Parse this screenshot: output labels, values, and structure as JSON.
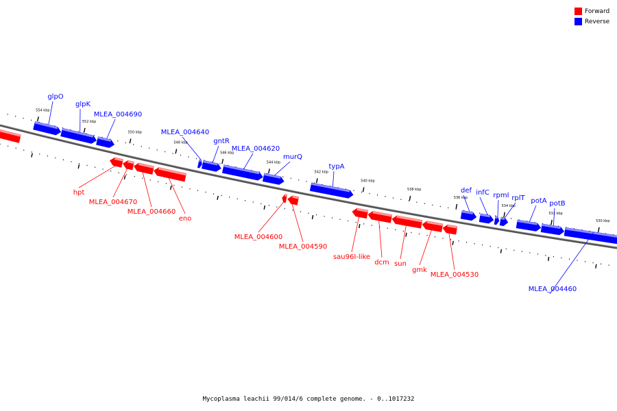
{
  "colors": {
    "forward": "#ff0000",
    "reverse": "#0000ff",
    "backbone": "#555555"
  },
  "legend": [
    {
      "label": "Forward",
      "color": "#ff0000"
    },
    {
      "label": "Reverse",
      "color": "#0000ff"
    }
  ],
  "caption": "Mycoplasma leachii 99/014/6 complete genome. - 0..1017232",
  "scale_labels": [
    "554 kbp",
    "552 kbp",
    "550 kbp",
    "548 kbp",
    "546 kbp",
    "544 kbp",
    "542 kbp",
    "540 kbp",
    "538 kbp",
    "536 kbp",
    "534 kbp",
    "532 kbp",
    "530 kbp"
  ],
  "genes": [
    {
      "name": "",
      "strand": "forward"
    },
    {
      "name": "glpO",
      "strand": "reverse"
    },
    {
      "name": "glpK",
      "strand": "reverse"
    },
    {
      "name": "MLEA_004690",
      "strand": "reverse"
    },
    {
      "name": "MLEA_004640",
      "strand": "reverse"
    },
    {
      "name": "gntR",
      "strand": "reverse"
    },
    {
      "name": "MLEA_004620",
      "strand": "reverse"
    },
    {
      "name": "murQ",
      "strand": "reverse"
    },
    {
      "name": "typA",
      "strand": "reverse"
    },
    {
      "name": "def",
      "strand": "reverse"
    },
    {
      "name": "infC",
      "strand": "reverse"
    },
    {
      "name": "rpmI",
      "strand": "reverse"
    },
    {
      "name": "rplT",
      "strand": "reverse"
    },
    {
      "name": "potA",
      "strand": "reverse"
    },
    {
      "name": "potB",
      "strand": "reverse"
    },
    {
      "name": "MLEA_004460",
      "strand": "reverse"
    },
    {
      "name": "hpt",
      "strand": "forward"
    },
    {
      "name": "MLEA_004670",
      "strand": "forward"
    },
    {
      "name": "MLEA_004660",
      "strand": "forward"
    },
    {
      "name": "eno",
      "strand": "forward"
    },
    {
      "name": "MLEA_004600",
      "strand": "forward"
    },
    {
      "name": "MLEA_004590",
      "strand": "forward"
    },
    {
      "name": "sau96I-like",
      "strand": "forward"
    },
    {
      "name": "dcm",
      "strand": "forward"
    },
    {
      "name": "sun",
      "strand": "forward"
    },
    {
      "name": "gmk",
      "strand": "forward"
    },
    {
      "name": "MLEA_004530",
      "strand": "forward"
    }
  ]
}
